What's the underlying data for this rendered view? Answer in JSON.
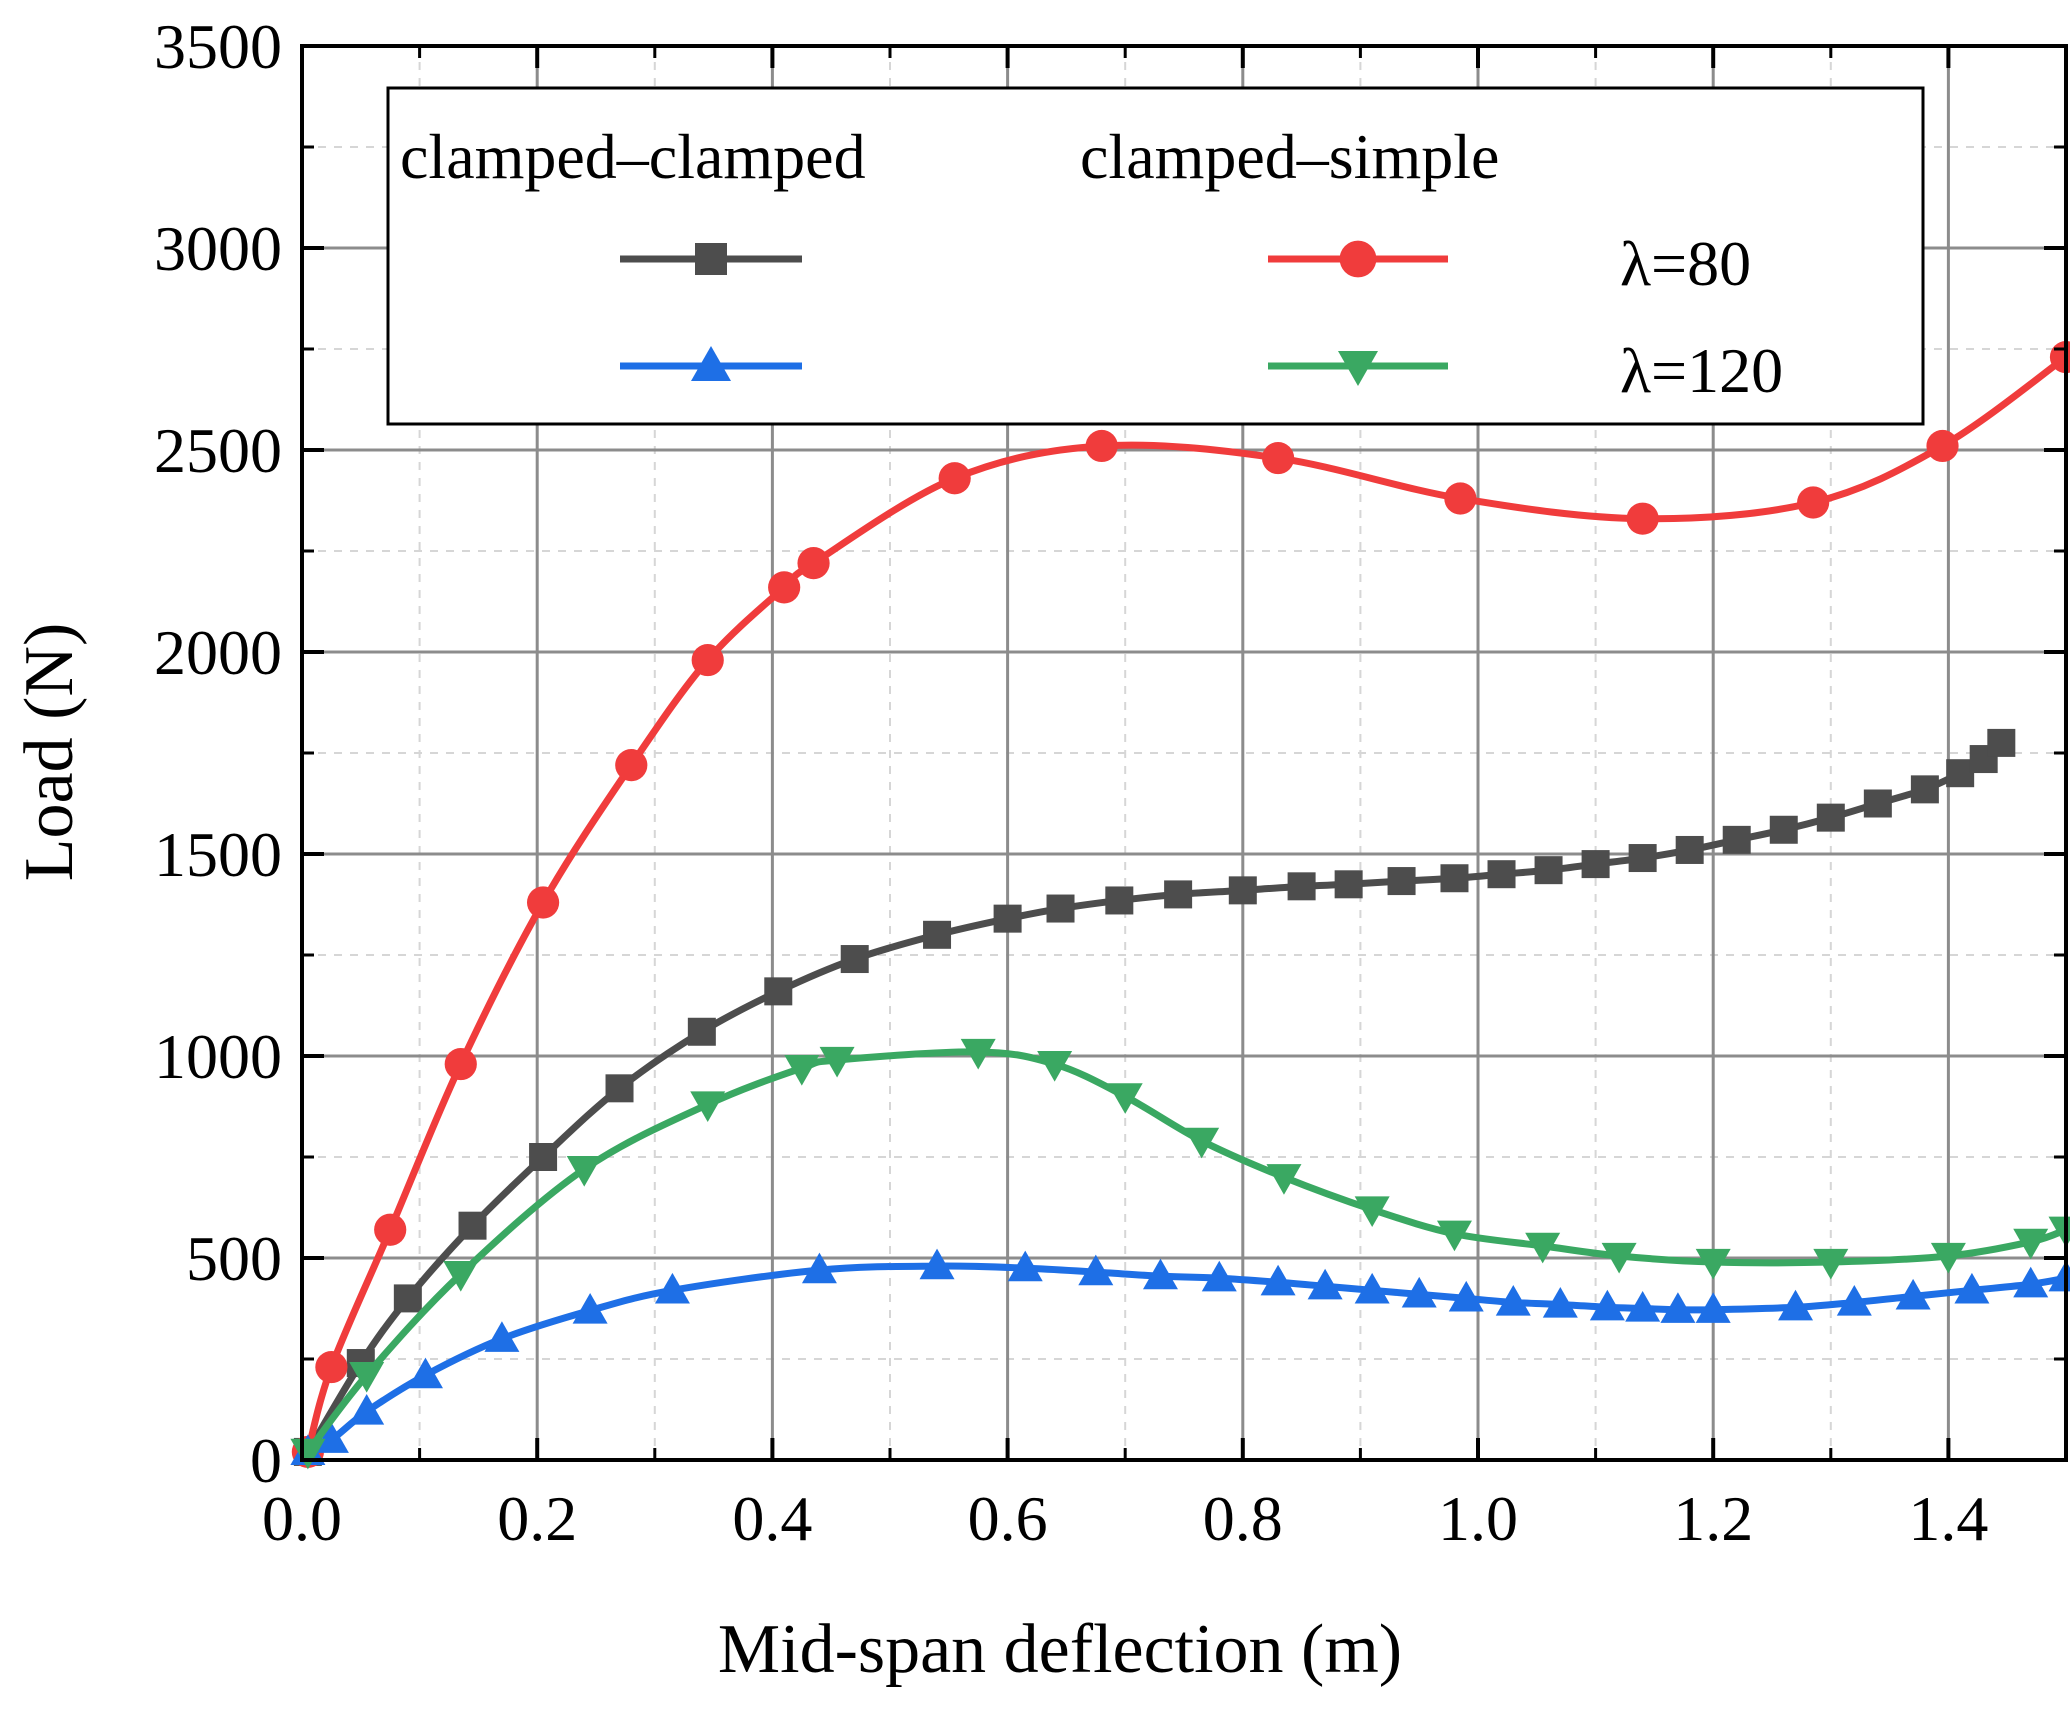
{
  "chart_data": {
    "type": "line",
    "title": "",
    "xlabel": "Mid-span deflection (m)",
    "ylabel": "Load (N)",
    "xlim": [
      0,
      1.5
    ],
    "ylim": [
      0,
      3500
    ],
    "xticks": [
      0.0,
      0.2,
      0.4,
      0.6,
      0.8,
      1.0,
      1.2,
      1.4
    ],
    "xtick_labels": [
      "0.0",
      "0.2",
      "0.4",
      "0.6",
      "0.8",
      "1.0",
      "1.2",
      "1.4"
    ],
    "yticks": [
      0,
      500,
      1000,
      1500,
      2000,
      2500,
      3000,
      3500
    ],
    "ytick_labels": [
      "0",
      "500",
      "1000",
      "1500",
      "2000",
      "2500",
      "3000",
      "3500"
    ],
    "grid": true,
    "legend": {
      "placement": "top-left",
      "column_headers": [
        "clamped–clamped",
        "clamped–simple"
      ],
      "row_labels": [
        "λ=80",
        "λ=120"
      ]
    },
    "series": [
      {
        "name": "clamped–clamped λ=80",
        "color": "#4d4d4d",
        "marker": "square",
        "x": [
          0.005,
          0.05,
          0.09,
          0.145,
          0.205,
          0.27,
          0.34,
          0.405,
          0.47,
          0.54,
          0.6,
          0.645,
          0.695,
          0.745,
          0.8,
          0.85,
          0.89,
          0.935,
          0.98,
          1.02,
          1.06,
          1.1,
          1.14,
          1.18,
          1.22,
          1.26,
          1.3,
          1.34,
          1.38,
          1.41,
          1.43,
          1.445
        ],
        "y": [
          20,
          240,
          400,
          580,
          750,
          920,
          1060,
          1160,
          1240,
          1300,
          1340,
          1365,
          1385,
          1400,
          1410,
          1420,
          1425,
          1433,
          1440,
          1450,
          1460,
          1475,
          1490,
          1510,
          1535,
          1560,
          1590,
          1625,
          1660,
          1700,
          1735,
          1775
        ]
      },
      {
        "name": "clamped–simple λ=80",
        "color": "#f03c3c",
        "marker": "circle",
        "x": [
          0.005,
          0.025,
          0.075,
          0.135,
          0.205,
          0.28,
          0.345,
          0.41,
          0.435,
          0.555,
          0.68,
          0.83,
          0.985,
          1.14,
          1.285,
          1.395,
          1.5
        ],
        "y": [
          20,
          230,
          570,
          980,
          1380,
          1720,
          1980,
          2160,
          2220,
          2430,
          2510,
          2480,
          2380,
          2330,
          2370,
          2510,
          2730
        ]
      },
      {
        "name": "clamped–clamped λ=120",
        "color": "#1e6fe6",
        "marker": "triangle-up",
        "x": [
          0.005,
          0.025,
          0.055,
          0.105,
          0.17,
          0.245,
          0.315,
          0.44,
          0.54,
          0.615,
          0.675,
          0.73,
          0.78,
          0.83,
          0.87,
          0.91,
          0.95,
          0.99,
          1.03,
          1.07,
          1.11,
          1.14,
          1.17,
          1.2,
          1.27,
          1.32,
          1.37,
          1.42,
          1.47,
          1.5
        ],
        "y": [
          20,
          50,
          120,
          210,
          300,
          370,
          420,
          470,
          480,
          475,
          465,
          455,
          450,
          440,
          430,
          420,
          410,
          400,
          390,
          385,
          378,
          375,
          372,
          372,
          378,
          390,
          405,
          420,
          435,
          450
        ]
      },
      {
        "name": "clamped–simple λ=120",
        "color": "#3aa862",
        "marker": "triangle-down",
        "x": [
          0.005,
          0.055,
          0.135,
          0.24,
          0.345,
          0.425,
          0.455,
          0.575,
          0.64,
          0.7,
          0.765,
          0.835,
          0.91,
          0.98,
          1.055,
          1.12,
          1.2,
          1.3,
          1.4,
          1.47,
          1.5
        ],
        "y": [
          20,
          210,
          460,
          720,
          880,
          970,
          990,
          1010,
          980,
          900,
          790,
          700,
          620,
          560,
          530,
          505,
          490,
          490,
          505,
          540,
          570
        ]
      }
    ]
  }
}
